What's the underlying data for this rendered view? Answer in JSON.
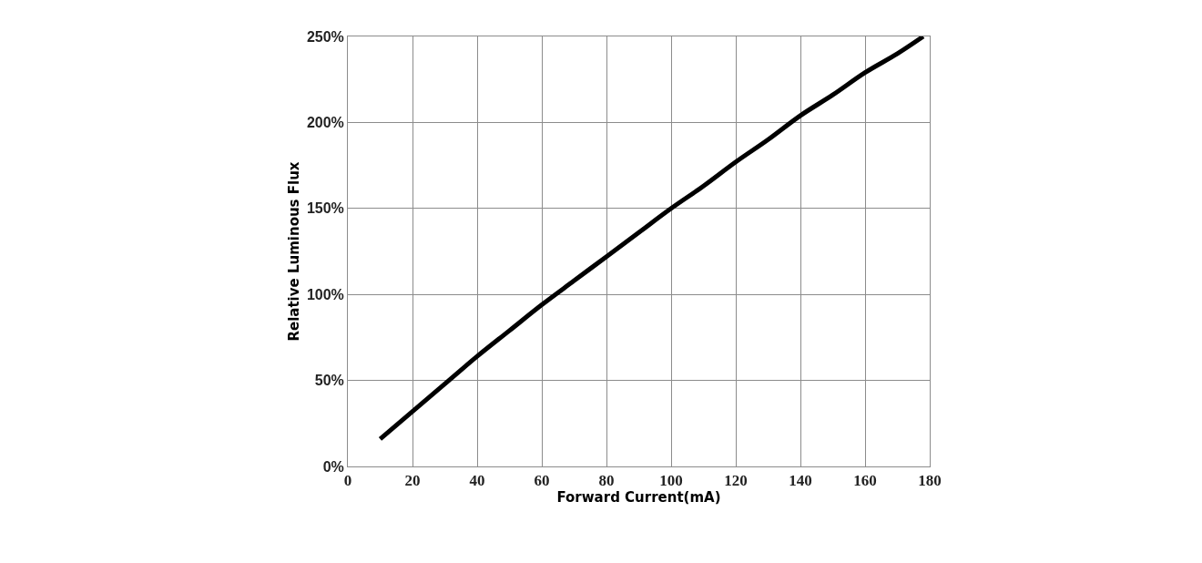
{
  "chart_data": {
    "type": "line",
    "xlabel": "Forward Current(mA)",
    "ylabel": "Relative Luminous Flux",
    "x": [
      10,
      20,
      30,
      40,
      50,
      60,
      70,
      80,
      90,
      100,
      110,
      120,
      130,
      140,
      150,
      160,
      170,
      178
    ],
    "series": [
      {
        "color": "#000000",
        "values": [
          16,
          32,
          48,
          64,
          79,
          94,
          108,
          122,
          136,
          150,
          163,
          177,
          190,
          204,
          216,
          229,
          240,
          250
        ]
      }
    ],
    "xlim": [
      0,
      180
    ],
    "xticks": [
      0,
      20,
      40,
      60,
      80,
      100,
      120,
      140,
      160,
      180
    ],
    "ylim": [
      0,
      250
    ],
    "yticks": [
      {
        "value": 0,
        "label": "0%"
      },
      {
        "value": 50,
        "label": "50%"
      },
      {
        "value": 100,
        "label": "100%"
      },
      {
        "value": 150,
        "label": "150%"
      },
      {
        "value": 200,
        "label": "200%"
      },
      {
        "value": 250,
        "label": "250%"
      }
    ],
    "grid": true,
    "legend": false,
    "marker": "none",
    "line_style": "solid"
  }
}
